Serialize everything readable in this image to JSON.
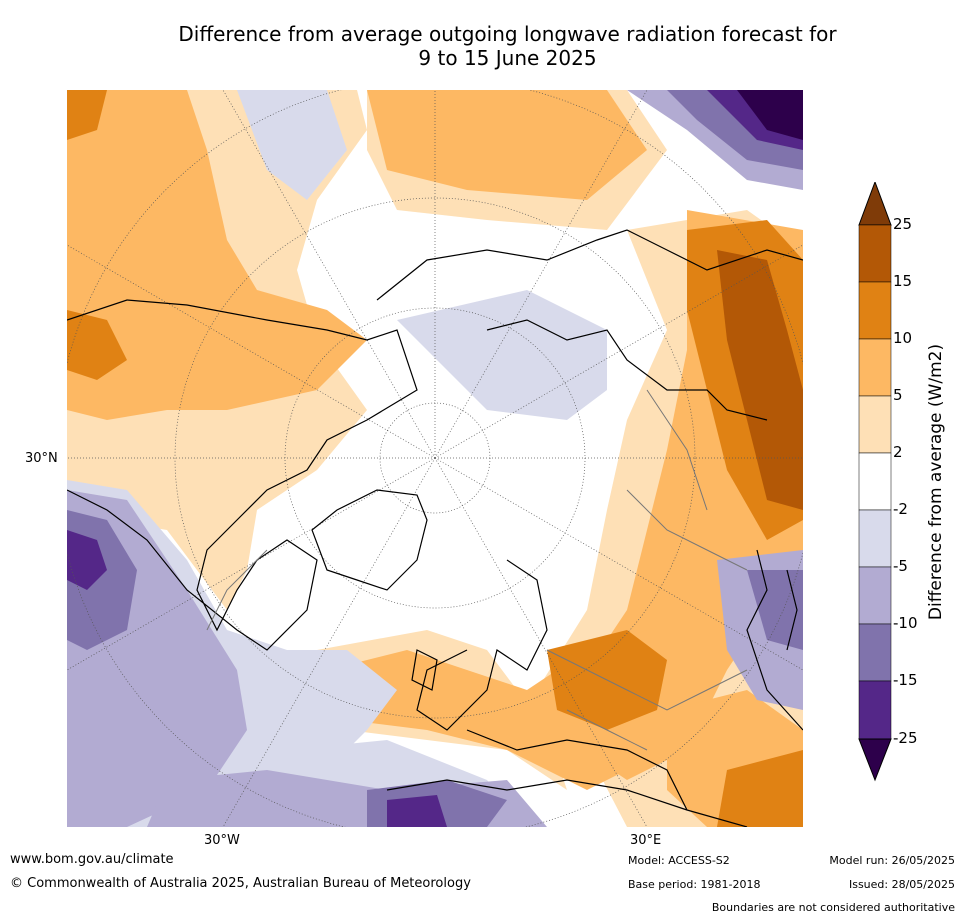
{
  "title_line1": "Difference from average outgoing longwave radiation forecast for",
  "title_line2": "9 to 15 June 2025",
  "map": {
    "lat_label": "30°N",
    "lon_labels": [
      "30°W",
      "30°E"
    ]
  },
  "colorbar": {
    "label": "Difference from average (W/m2)",
    "ticks": [
      "25",
      "15",
      "10",
      "5",
      "2",
      "-2",
      "-5",
      "-10",
      "-15",
      "-25"
    ],
    "colors": [
      "#7f3b08",
      "#b35806",
      "#e08214",
      "#fdb863",
      "#fee0b6",
      "#ffffff",
      "#d8daeb",
      "#b2abd2",
      "#8073ac",
      "#542788",
      "#2d004b"
    ]
  },
  "footer": {
    "url": "www.bom.gov.au/climate",
    "copyright": "© Commonwealth of Australia 2025, Australian Bureau of Meteorology",
    "model": "Model: ACCESS-S2",
    "base_period": "Base period: 1981-2018",
    "model_run": "Model run: 26/05/2025",
    "issued": "Issued: 28/05/2025",
    "boundaries": "Boundaries are not considered authoritative"
  }
}
